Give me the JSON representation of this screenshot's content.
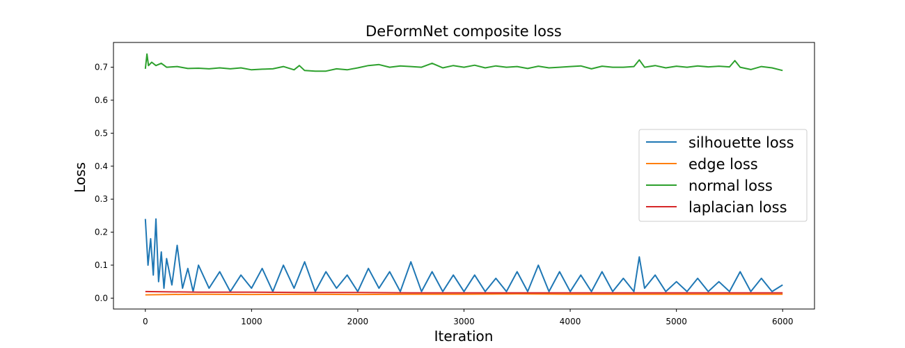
{
  "chart_data": {
    "type": "line",
    "title": "DeFormNet composite loss",
    "xlabel": "Iteration",
    "ylabel": "Loss",
    "xlim": [
      -300,
      6300
    ],
    "ylim": [
      -0.033,
      0.775
    ],
    "xticks": [
      0,
      1000,
      2000,
      3000,
      4000,
      5000,
      6000
    ],
    "yticks": [
      0.0,
      0.1,
      0.2,
      0.3,
      0.4,
      0.5,
      0.6,
      0.7
    ],
    "grid": false,
    "legend_position": "center-right",
    "series": [
      {
        "name": "silhouette loss",
        "color": "#1f77b4",
        "x": [
          0,
          25,
          50,
          75,
          100,
          125,
          150,
          175,
          200,
          250,
          300,
          350,
          400,
          450,
          500,
          600,
          700,
          800,
          900,
          1000,
          1100,
          1200,
          1300,
          1400,
          1500,
          1600,
          1700,
          1800,
          1900,
          2000,
          2100,
          2200,
          2300,
          2400,
          2500,
          2600,
          2700,
          2800,
          2900,
          3000,
          3100,
          3200,
          3300,
          3400,
          3500,
          3600,
          3700,
          3800,
          3900,
          4000,
          4100,
          4200,
          4300,
          4400,
          4500,
          4600,
          4650,
          4700,
          4800,
          4900,
          5000,
          5100,
          5200,
          5300,
          5400,
          5500,
          5600,
          5700,
          5800,
          5900,
          6000
        ],
        "y": [
          0.24,
          0.1,
          0.18,
          0.07,
          0.24,
          0.05,
          0.14,
          0.03,
          0.12,
          0.04,
          0.16,
          0.03,
          0.09,
          0.02,
          0.1,
          0.03,
          0.08,
          0.02,
          0.07,
          0.03,
          0.09,
          0.02,
          0.1,
          0.03,
          0.11,
          0.02,
          0.08,
          0.03,
          0.07,
          0.02,
          0.09,
          0.03,
          0.08,
          0.02,
          0.11,
          0.02,
          0.08,
          0.02,
          0.07,
          0.02,
          0.07,
          0.02,
          0.06,
          0.02,
          0.08,
          0.02,
          0.1,
          0.02,
          0.08,
          0.02,
          0.07,
          0.02,
          0.08,
          0.02,
          0.06,
          0.02,
          0.125,
          0.03,
          0.07,
          0.02,
          0.05,
          0.02,
          0.06,
          0.02,
          0.05,
          0.02,
          0.08,
          0.02,
          0.06,
          0.02,
          0.04
        ]
      },
      {
        "name": "edge loss",
        "color": "#ff7f0e",
        "x": [
          0,
          500,
          1000,
          1500,
          2000,
          2500,
          3000,
          3500,
          4000,
          4500,
          5000,
          5500,
          6000
        ],
        "y": [
          0.01,
          0.012,
          0.011,
          0.012,
          0.011,
          0.012,
          0.012,
          0.013,
          0.012,
          0.012,
          0.012,
          0.012,
          0.012
        ]
      },
      {
        "name": "normal loss",
        "color": "#2ca02c",
        "x": [
          0,
          15,
          30,
          60,
          100,
          150,
          200,
          300,
          400,
          500,
          600,
          700,
          800,
          900,
          1000,
          1100,
          1200,
          1300,
          1400,
          1450,
          1500,
          1600,
          1700,
          1800,
          1900,
          2000,
          2100,
          2200,
          2300,
          2400,
          2500,
          2600,
          2700,
          2800,
          2900,
          3000,
          3100,
          3200,
          3300,
          3400,
          3500,
          3600,
          3700,
          3800,
          3900,
          4000,
          4100,
          4200,
          4300,
          4400,
          4500,
          4600,
          4650,
          4700,
          4800,
          4900,
          5000,
          5100,
          5200,
          5300,
          5400,
          5500,
          5550,
          5600,
          5700,
          5800,
          5900,
          6000
        ],
        "y": [
          0.695,
          0.74,
          0.705,
          0.715,
          0.705,
          0.712,
          0.7,
          0.702,
          0.696,
          0.697,
          0.695,
          0.698,
          0.695,
          0.698,
          0.692,
          0.694,
          0.695,
          0.702,
          0.692,
          0.705,
          0.69,
          0.688,
          0.688,
          0.695,
          0.692,
          0.698,
          0.705,
          0.708,
          0.7,
          0.704,
          0.702,
          0.7,
          0.712,
          0.698,
          0.705,
          0.7,
          0.706,
          0.698,
          0.704,
          0.7,
          0.702,
          0.696,
          0.703,
          0.698,
          0.7,
          0.702,
          0.704,
          0.695,
          0.703,
          0.7,
          0.7,
          0.702,
          0.722,
          0.7,
          0.705,
          0.698,
          0.703,
          0.7,
          0.704,
          0.701,
          0.703,
          0.701,
          0.72,
          0.7,
          0.693,
          0.702,
          0.698,
          0.69
        ]
      },
      {
        "name": "laplacian loss",
        "color": "#d62728",
        "x": [
          0,
          500,
          1000,
          1500,
          2000,
          2500,
          3000,
          3500,
          4000,
          4500,
          5000,
          5500,
          6000
        ],
        "y": [
          0.02,
          0.018,
          0.018,
          0.017,
          0.017,
          0.016,
          0.016,
          0.016,
          0.016,
          0.016,
          0.016,
          0.016,
          0.016
        ]
      }
    ]
  }
}
